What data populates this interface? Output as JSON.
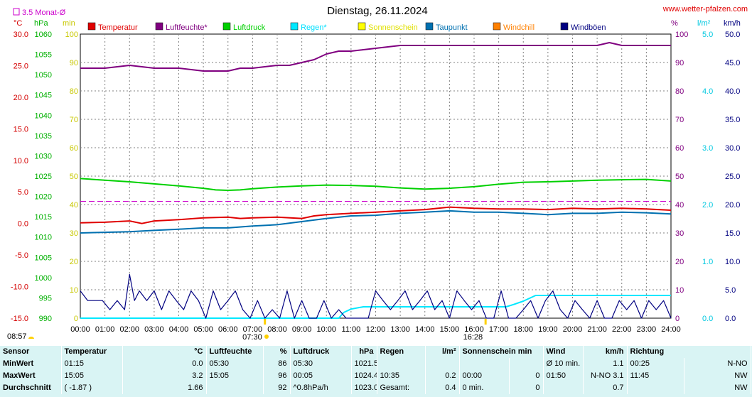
{
  "chart_data": {
    "type": "line",
    "title": "Dienstag, 26.11.2024",
    "website": "www.wetter-pfalzen.com",
    "monthly_avg_label": "3.5 Monat-Ø",
    "monthly_avg_temp": 3.5,
    "x_ticks": [
      "00:00",
      "01:00",
      "02:00",
      "03:00",
      "04:00",
      "05:00",
      "06:00",
      "07:00",
      "08:00",
      "09:00",
      "10:00",
      "11:00",
      "12:00",
      "13:00",
      "14:00",
      "15:00",
      "16:00",
      "17:00",
      "18:00",
      "19:00",
      "20:00",
      "21:00",
      "22:00",
      "23:00",
      "24:00"
    ],
    "sunrise": "07:30",
    "sunset": "16:28",
    "last_update": "08:57",
    "axes": {
      "temp": {
        "unit": "°C",
        "min": -15,
        "max": 30,
        "ticks": [
          "30.0",
          "25.0",
          "20.0",
          "15.0",
          "10.0",
          "5.0",
          "0.0",
          "-5.0",
          "-10.0",
          "-15.0"
        ],
        "color": "#d40000"
      },
      "pressure": {
        "unit": "hPa",
        "min": 990,
        "max": 1060,
        "ticks": [
          "1060",
          "1055",
          "1050",
          "1045",
          "1040",
          "1035",
          "1030",
          "1025",
          "1020",
          "1015",
          "1010",
          "1005",
          "1000",
          "995",
          "990"
        ],
        "color": "#00b000"
      },
      "sunshine": {
        "unit": "min",
        "min": 0,
        "max": 100,
        "ticks": [
          "100",
          "90",
          "80",
          "70",
          "60",
          "50",
          "40",
          "30",
          "20",
          "10",
          "0"
        ],
        "color": "#c8c800"
      },
      "humidity": {
        "unit": "%",
        "min": 0,
        "max": 100,
        "ticks": [
          "100",
          "90",
          "80",
          "70",
          "60",
          "50",
          "40",
          "30",
          "20",
          "10",
          "0"
        ],
        "color": "#800080"
      },
      "rain": {
        "unit": "l/m²",
        "min": 0,
        "max": 5,
        "ticks": [
          "5.0",
          "4.0",
          "3.0",
          "2.0",
          "1.0",
          "0.0"
        ],
        "color": "#00c8e0"
      },
      "wind": {
        "unit": "km/h",
        "min": 0,
        "max": 50,
        "ticks": [
          "50.0",
          "45.0",
          "40.0",
          "35.0",
          "30.0",
          "25.0",
          "20.0",
          "15.0",
          "10.0",
          "5.0",
          "0.0"
        ],
        "color": "#000080"
      }
    },
    "legend": [
      {
        "name": "Temperatur",
        "color": "#e00000"
      },
      {
        "name": "Luftfeuchte*",
        "color": "#800080"
      },
      {
        "name": "Luftdruck",
        "color": "#00d000"
      },
      {
        "name": "Regen*",
        "color": "#00e8ff"
      },
      {
        "name": "Sonnenschein",
        "color": "#ffff00"
      },
      {
        "name": "Taupunkt",
        "color": "#0070b0"
      },
      {
        "name": "Windchill",
        "color": "#ff8000"
      },
      {
        "name": "Windböen",
        "color": "#000080"
      }
    ],
    "series": [
      {
        "name": "Temperatur",
        "axis": "temp",
        "color": "#e00000",
        "x": [
          0,
          1,
          2,
          2.5,
          3,
          4,
          5,
          6,
          6.5,
          7,
          8,
          9,
          9.5,
          10,
          11,
          12,
          13,
          14,
          15,
          16,
          17,
          18,
          19,
          20,
          21,
          22,
          23,
          24
        ],
        "y": [
          0.1,
          0.2,
          0.4,
          0.0,
          0.4,
          0.6,
          0.9,
          1.0,
          0.8,
          0.9,
          1.0,
          0.8,
          1.2,
          1.4,
          1.6,
          1.8,
          2.0,
          2.2,
          2.6,
          2.4,
          2.3,
          2.3,
          2.2,
          2.4,
          2.3,
          2.4,
          2.3,
          2.1
        ]
      },
      {
        "name": "Luftfeuchte*",
        "color": "#800080",
        "axis": "humidity",
        "x": [
          0,
          1,
          2,
          3,
          4,
          5,
          5.5,
          6,
          6.5,
          7,
          8,
          8.5,
          9,
          9.5,
          10,
          10.5,
          11,
          12,
          13,
          14,
          15,
          16,
          17,
          18,
          19,
          20,
          21,
          21.5,
          22,
          23,
          24
        ],
        "y": [
          88,
          88,
          89,
          88,
          88,
          87,
          87,
          87,
          88,
          88,
          89,
          89,
          90,
          91,
          93,
          94,
          94,
          95,
          96,
          96,
          96,
          96,
          96,
          96,
          96,
          96,
          96,
          97,
          96,
          96,
          96
        ]
      },
      {
        "name": "Luftdruck",
        "color": "#00d000",
        "axis": "pressure",
        "x": [
          0,
          1,
          2,
          3,
          4,
          5,
          5.5,
          6,
          6.5,
          7,
          8,
          9,
          10,
          11,
          12,
          13,
          14,
          15,
          16,
          17,
          18,
          19,
          20,
          21,
          22,
          23,
          24
        ],
        "y": [
          1024.4,
          1024.0,
          1023.6,
          1023.1,
          1022.6,
          1022.0,
          1021.6,
          1021.5,
          1021.6,
          1021.9,
          1022.3,
          1022.6,
          1022.8,
          1022.7,
          1022.5,
          1022.1,
          1021.8,
          1022.0,
          1022.4,
          1023.0,
          1023.5,
          1023.6,
          1023.8,
          1024.0,
          1024.1,
          1024.2,
          1023.8
        ]
      },
      {
        "name": "Taupunkt",
        "color": "#0070b0",
        "axis": "temp",
        "x": [
          0,
          1,
          2,
          3,
          4,
          5,
          6,
          7,
          8,
          9,
          10,
          11,
          12,
          13,
          14,
          15,
          16,
          17,
          18,
          19,
          20,
          21,
          22,
          23,
          24
        ],
        "y": [
          -1.5,
          -1.4,
          -1.3,
          -1.1,
          -0.9,
          -0.7,
          -0.7,
          -0.4,
          -0.2,
          0.3,
          0.8,
          1.2,
          1.3,
          1.6,
          1.8,
          2.0,
          1.8,
          1.8,
          1.6,
          1.4,
          1.6,
          1.6,
          1.8,
          1.7,
          1.5
        ]
      },
      {
        "name": "Regen*",
        "color": "#00e8ff",
        "axis": "rain",
        "x": [
          0,
          10.5,
          10.7,
          11,
          11.5,
          12,
          13,
          14,
          15,
          16,
          17,
          17.3,
          17.6,
          18,
          18.5,
          19,
          20,
          21,
          22,
          23,
          24
        ],
        "y": [
          0,
          0,
          0.1,
          0.16,
          0.2,
          0.2,
          0.2,
          0.2,
          0.2,
          0.2,
          0.2,
          0.2,
          0.24,
          0.3,
          0.4,
          0.4,
          0.4,
          0.4,
          0.4,
          0.4,
          0.4
        ]
      },
      {
        "name": "Windböen",
        "color": "#000080",
        "axis": "wind",
        "x": [
          0,
          0.3,
          0.6,
          0.9,
          1.2,
          1.5,
          1.8,
          2.0,
          2.2,
          2.4,
          2.7,
          3.0,
          3.3,
          3.6,
          3.9,
          4.2,
          4.5,
          4.8,
          5.1,
          5.4,
          5.7,
          6.0,
          6.3,
          6.6,
          6.9,
          7.2,
          7.5,
          7.8,
          8.1,
          8.4,
          8.7,
          9.0,
          9.3,
          9.6,
          9.9,
          10.2,
          10.5,
          10.8,
          11.1,
          11.4,
          11.7,
          12.0,
          12.3,
          12.6,
          12.9,
          13.2,
          13.5,
          13.8,
          14.1,
          14.4,
          14.7,
          15.0,
          15.3,
          15.6,
          15.9,
          16.2,
          16.5,
          16.8,
          17.1,
          17.4,
          17.7,
          18.0,
          18.3,
          18.6,
          18.9,
          19.2,
          19.5,
          19.8,
          20.1,
          20.4,
          20.7,
          21.0,
          21.3,
          21.6,
          21.9,
          22.2,
          22.5,
          22.8,
          23.1,
          23.4,
          23.7,
          24.0
        ],
        "y": [
          4.8,
          3.1,
          3.1,
          3.1,
          1.5,
          3.1,
          1.5,
          7.7,
          3.1,
          4.8,
          3.1,
          4.8,
          1.5,
          4.8,
          3.1,
          1.5,
          4.8,
          3.1,
          0,
          4.8,
          1.5,
          3.1,
          4.8,
          1.5,
          0,
          3.1,
          0,
          1.5,
          0,
          4.8,
          0,
          3.1,
          0,
          0,
          3.1,
          0,
          1.5,
          0,
          0,
          0,
          0,
          4.8,
          3.1,
          1.5,
          3.1,
          4.8,
          1.5,
          3.1,
          4.8,
          1.5,
          3.1,
          0,
          4.8,
          3.1,
          1.5,
          3.1,
          0,
          0,
          4.8,
          0,
          0,
          1.5,
          3.1,
          0,
          3.1,
          4.8,
          1.5,
          0,
          3.1,
          1.5,
          0,
          3.1,
          0,
          0,
          3.1,
          1.5,
          3.1,
          0,
          3.1,
          1.5,
          3.1,
          0
        ]
      },
      {
        "name": "Windchill",
        "color": "#ff8000",
        "axis": "temp",
        "x": [],
        "y": []
      },
      {
        "name": "Sonnenschein",
        "color": "#ffff00",
        "axis": "sunshine",
        "x": [],
        "y": []
      }
    ]
  },
  "stats": {
    "header": {
      "sensor": "Sensor",
      "temp": "Temperatur",
      "temp_unit": "°C",
      "hum": "Luftfeuchte",
      "hum_unit": "%",
      "pres": "Luftdruck",
      "pres_unit": "hPa",
      "rain": "Regen",
      "rain_unit": "l/m²",
      "sun": "Sonnenschein min",
      "wind": "Wind",
      "wind_unit": "km/h",
      "dir": "Richtung"
    },
    "min": {
      "label": "MinWert",
      "temp_time": "01:15",
      "temp_val": "0.0",
      "hum_time": "05:30",
      "hum_val": "86",
      "pres_time": "05:30",
      "pres_val": "1021.5",
      "rain_time": "",
      "rain_val": "",
      "sun_time": "",
      "sun_val": "",
      "wind_time": "Ø 10 min.",
      "wind_val": "1.1",
      "dir_time": "00:25",
      "dir_val": "N-NO"
    },
    "max": {
      "label": "MaxWert",
      "temp_time": "15:05",
      "temp_val": "3.2",
      "hum_time": "15:05",
      "hum_val": "96",
      "pres_time": "00:05",
      "pres_val": "1024.4",
      "rain_time": "10:35",
      "rain_val": "0.2",
      "sun_time": "00:00",
      "sun_val": "0",
      "wind_time": "01:50",
      "wind_dir": "N-NO",
      "wind_val": "3.1",
      "dir_time": "11:45",
      "dir_val": "NW"
    },
    "avg": {
      "label": "Durchschnitt",
      "temp_time": "( -1.87 )",
      "temp_val": "1.66",
      "hum_time": "",
      "hum_val": "92",
      "pres_time": "^0.8hPa/h",
      "pres_val": "1023.0",
      "rain_time": "Gesamt:",
      "rain_val": "0.4",
      "sun_time": "0 min.",
      "sun_val": "0",
      "wind_time": "",
      "wind_val": "0.7",
      "dir_time": "",
      "dir_val": "NW"
    }
  }
}
